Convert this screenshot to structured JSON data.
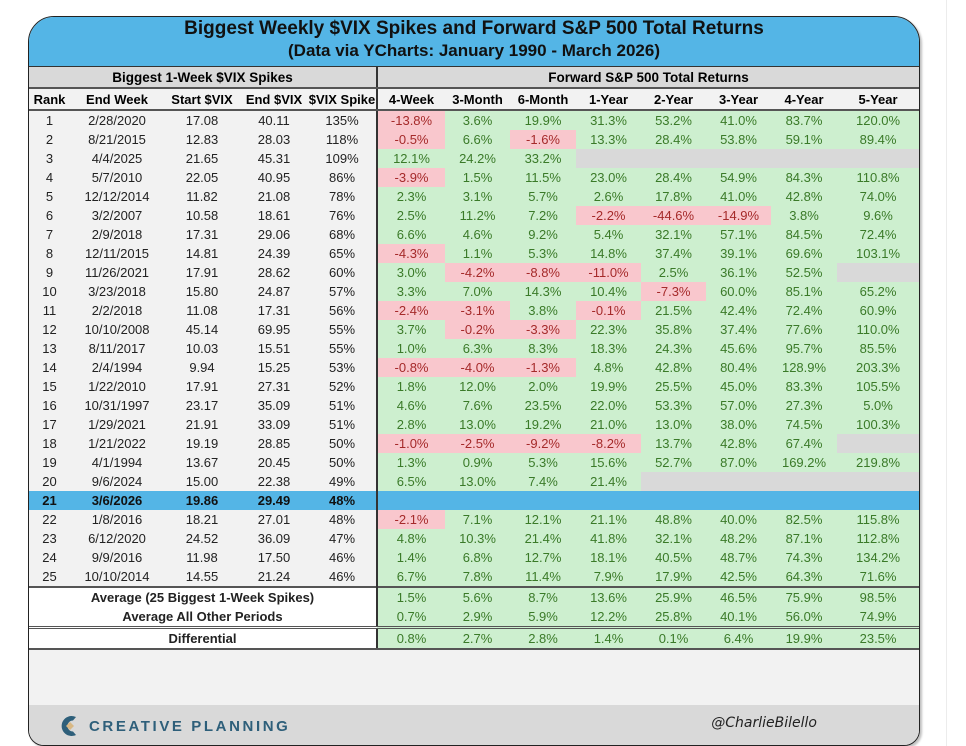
{
  "header": {
    "title": "Biggest Weekly $VIX Spikes and Forward S&P 500 Total Returns",
    "subtitle": "(Data via YCharts: January 1990 - March 2026)"
  },
  "groups": {
    "left": "Biggest 1-Week $VIX Spikes",
    "right": "Forward S&P 500 Total Returns"
  },
  "footer": {
    "logo_text": "CREATIVE PLANNING",
    "logo_icon": "creative-planning-logo-icon",
    "handle": "@CharlieBilello"
  },
  "colors": {
    "header_blue": "#54b5e6",
    "positive_bg": "#cdefcf",
    "positive_text": "#3a7a28",
    "negative_bg": "#f9c7cd",
    "negative_text": "#a52a2a",
    "na_bg": "#d9d9d9"
  },
  "chart_data": {
    "type": "table",
    "title": "Biggest Weekly $VIX Spikes and Forward S&P 500 Total Returns",
    "subtitle": "(Data via YCharts: January 1990 - March 2026)",
    "columns": [
      "Rank",
      "End Week",
      "Start $VIX",
      "End $VIX",
      "$VIX Spike",
      "4-Week",
      "3-Month",
      "6-Month",
      "1-Year",
      "2-Year",
      "3-Year",
      "4-Year",
      "5-Year"
    ],
    "rows": [
      [
        "1",
        "2/28/2020",
        "17.08",
        "40.11",
        "135%",
        "-13.8%",
        "3.6%",
        "19.9%",
        "31.3%",
        "53.2%",
        "41.0%",
        "83.7%",
        "120.0%"
      ],
      [
        "2",
        "8/21/2015",
        "12.83",
        "28.03",
        "118%",
        "-0.5%",
        "6.6%",
        "-1.6%",
        "13.3%",
        "28.4%",
        "53.8%",
        "59.1%",
        "89.4%"
      ],
      [
        "3",
        "4/4/2025",
        "21.65",
        "45.31",
        "109%",
        "12.1%",
        "24.2%",
        "33.2%",
        "",
        "",
        "",
        "",
        ""
      ],
      [
        "4",
        "5/7/2010",
        "22.05",
        "40.95",
        "86%",
        "-3.9%",
        "1.5%",
        "11.5%",
        "23.0%",
        "28.4%",
        "54.9%",
        "84.3%",
        "110.8%"
      ],
      [
        "5",
        "12/12/2014",
        "11.82",
        "21.08",
        "78%",
        "2.3%",
        "3.1%",
        "5.7%",
        "2.6%",
        "17.8%",
        "41.0%",
        "42.8%",
        "74.0%"
      ],
      [
        "6",
        "3/2/2007",
        "10.58",
        "18.61",
        "76%",
        "2.5%",
        "11.2%",
        "7.2%",
        "-2.2%",
        "-44.6%",
        "-14.9%",
        "3.8%",
        "9.6%"
      ],
      [
        "7",
        "2/9/2018",
        "17.31",
        "29.06",
        "68%",
        "6.6%",
        "4.6%",
        "9.2%",
        "5.4%",
        "32.1%",
        "57.1%",
        "84.5%",
        "72.4%"
      ],
      [
        "8",
        "12/11/2015",
        "14.81",
        "24.39",
        "65%",
        "-4.3%",
        "1.1%",
        "5.3%",
        "14.8%",
        "37.4%",
        "39.1%",
        "69.6%",
        "103.1%"
      ],
      [
        "9",
        "11/26/2021",
        "17.91",
        "28.62",
        "60%",
        "3.0%",
        "-4.2%",
        "-8.8%",
        "-11.0%",
        "2.5%",
        "36.1%",
        "52.5%",
        ""
      ],
      [
        "10",
        "3/23/2018",
        "15.80",
        "24.87",
        "57%",
        "3.3%",
        "7.0%",
        "14.3%",
        "10.4%",
        "-7.3%",
        "60.0%",
        "85.1%",
        "65.2%"
      ],
      [
        "11",
        "2/2/2018",
        "11.08",
        "17.31",
        "56%",
        "-2.4%",
        "-3.1%",
        "3.8%",
        "-0.1%",
        "21.5%",
        "42.4%",
        "72.4%",
        "60.9%"
      ],
      [
        "12",
        "10/10/2008",
        "45.14",
        "69.95",
        "55%",
        "3.7%",
        "-0.2%",
        "-3.3%",
        "22.3%",
        "35.8%",
        "37.4%",
        "77.6%",
        "110.0%"
      ],
      [
        "13",
        "8/11/2017",
        "10.03",
        "15.51",
        "55%",
        "1.0%",
        "6.3%",
        "8.3%",
        "18.3%",
        "24.3%",
        "45.6%",
        "95.7%",
        "85.5%"
      ],
      [
        "14",
        "2/4/1994",
        "9.94",
        "15.25",
        "53%",
        "-0.8%",
        "-4.0%",
        "-1.3%",
        "4.8%",
        "42.8%",
        "80.4%",
        "128.9%",
        "203.3%"
      ],
      [
        "15",
        "1/22/2010",
        "17.91",
        "27.31",
        "52%",
        "1.8%",
        "12.0%",
        "2.0%",
        "19.9%",
        "25.5%",
        "45.0%",
        "83.3%",
        "105.5%"
      ],
      [
        "16",
        "10/31/1997",
        "23.17",
        "35.09",
        "51%",
        "4.6%",
        "7.6%",
        "23.5%",
        "22.0%",
        "53.3%",
        "57.0%",
        "27.3%",
        "5.0%"
      ],
      [
        "17",
        "1/29/2021",
        "21.91",
        "33.09",
        "51%",
        "2.8%",
        "13.0%",
        "19.2%",
        "21.0%",
        "13.0%",
        "38.0%",
        "74.5%",
        "100.3%"
      ],
      [
        "18",
        "1/21/2022",
        "19.19",
        "28.85",
        "50%",
        "-1.0%",
        "-2.5%",
        "-9.2%",
        "-8.2%",
        "13.7%",
        "42.8%",
        "67.4%",
        ""
      ],
      [
        "19",
        "4/1/1994",
        "13.67",
        "20.45",
        "50%",
        "1.3%",
        "0.9%",
        "5.3%",
        "15.6%",
        "52.7%",
        "87.0%",
        "169.2%",
        "219.8%"
      ],
      [
        "20",
        "9/6/2024",
        "15.00",
        "22.38",
        "49%",
        "6.5%",
        "13.0%",
        "7.4%",
        "21.4%",
        "",
        "",
        "",
        ""
      ],
      [
        "21",
        "3/6/2026",
        "19.86",
        "29.49",
        "48%",
        "",
        "",
        "",
        "",
        "",
        "",
        "",
        ""
      ],
      [
        "22",
        "1/8/2016",
        "18.21",
        "27.01",
        "48%",
        "-2.1%",
        "7.1%",
        "12.1%",
        "21.1%",
        "48.8%",
        "40.0%",
        "82.5%",
        "115.8%"
      ],
      [
        "23",
        "6/12/2020",
        "24.52",
        "36.09",
        "47%",
        "4.8%",
        "10.3%",
        "21.4%",
        "41.8%",
        "32.1%",
        "48.2%",
        "87.1%",
        "112.8%"
      ],
      [
        "24",
        "9/9/2016",
        "11.98",
        "17.50",
        "46%",
        "1.4%",
        "6.8%",
        "12.7%",
        "18.1%",
        "40.5%",
        "48.7%",
        "74.3%",
        "134.2%"
      ],
      [
        "25",
        "10/10/2014",
        "14.55",
        "21.24",
        "46%",
        "6.7%",
        "7.8%",
        "11.4%",
        "7.9%",
        "17.9%",
        "42.5%",
        "64.3%",
        "71.6%"
      ]
    ],
    "highlighted_rank": "21",
    "summary": [
      {
        "label": "Average (25 Biggest 1-Week Spikes)",
        "values": [
          "1.5%",
          "5.6%",
          "8.7%",
          "13.6%",
          "25.9%",
          "46.5%",
          "75.9%",
          "98.5%"
        ]
      },
      {
        "label": "Average All Other Periods",
        "values": [
          "0.7%",
          "2.9%",
          "5.9%",
          "12.2%",
          "25.8%",
          "40.1%",
          "56.0%",
          "74.9%"
        ]
      },
      {
        "label": "Differential",
        "values": [
          "0.8%",
          "2.7%",
          "2.8%",
          "1.4%",
          "0.1%",
          "6.4%",
          "19.9%",
          "23.5%"
        ]
      }
    ]
  }
}
